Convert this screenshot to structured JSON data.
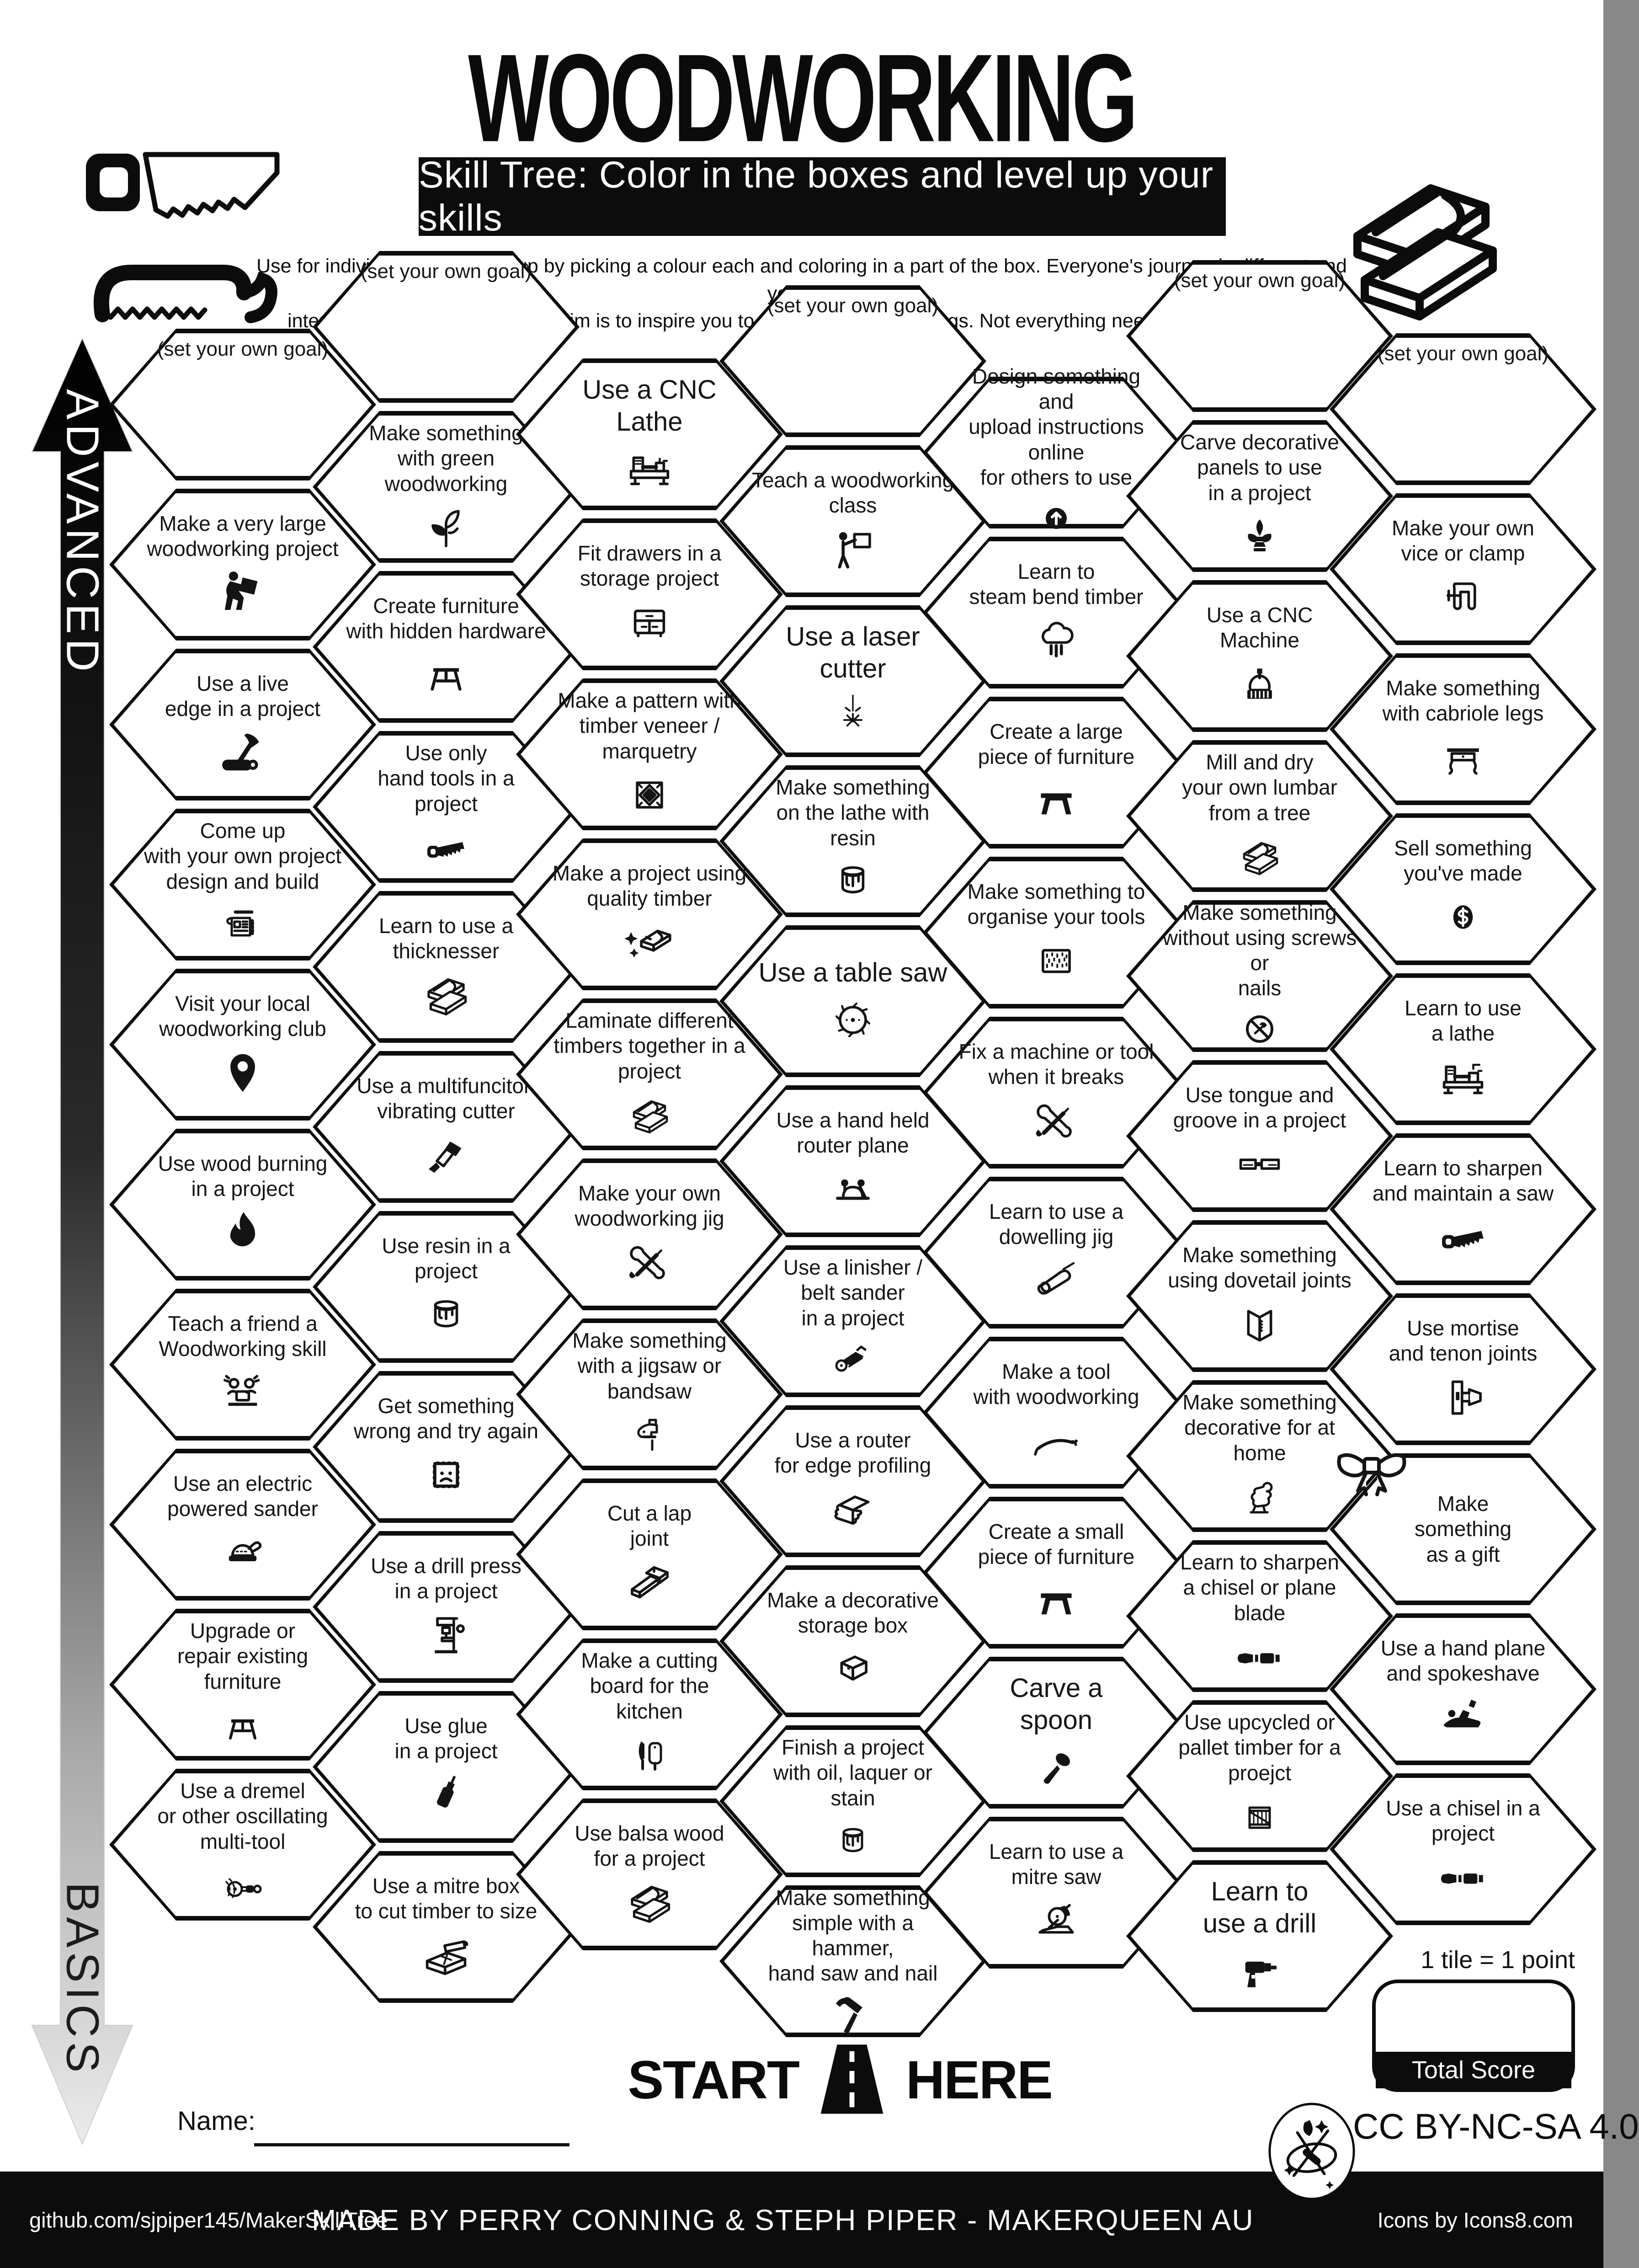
{
  "header": {
    "title": "WOODWORKING",
    "banner": "Skill Tree:  Color in the boxes and level up your skills",
    "description": "Use for individuals or as a group by picking a colour each and coloring in a part of the box.  Everyone's journey is different and you can\ninterpret the goals flexibly.  The aim is to inspire you to learn and try new things. Not everything needs to be completed."
  },
  "axis": {
    "advanced": "ADVANCED",
    "basics": "BASICS"
  },
  "grid": {
    "columns": [
      {
        "hexes": [
          {
            "label": "(set your own goal)",
            "goal": true
          },
          {
            "label": "Make a very large\nwoodworking project",
            "icon": "person-carrying-icon"
          },
          {
            "label": "Use a live\nedge in a project",
            "icon": "axe-log-icon"
          },
          {
            "label": "Come up\nwith your own project\ndesign and build",
            "icon": "blueprint-icon"
          },
          {
            "label": "Visit your local\nwoodworking club",
            "icon": "map-pin-icon"
          },
          {
            "label": "Use wood burning\nin a project",
            "icon": "flame-icon"
          },
          {
            "label": "Teach a friend a\nWoodworking skill",
            "icon": "people-laptop-icon"
          },
          {
            "label": "Use an electric\npowered sander",
            "icon": "orbital-sander-icon"
          },
          {
            "label": "Upgrade or\nrepair existing\nfurniture",
            "icon": "stool-icon"
          },
          {
            "label": "Use a dremel\nor other oscillating\nmulti-tool",
            "icon": "rotary-tool-icon"
          }
        ]
      },
      {
        "hexes": [
          {
            "label": "(set your own goal)",
            "goal": true
          },
          {
            "label": "Make something\nwith green woodworking",
            "icon": "sprout-icon"
          },
          {
            "label": "Create furniture\nwith hidden hardware",
            "icon": "stool-icon"
          },
          {
            "label": "Use only\nhand tools in a\nproject",
            "icon": "hand-saw-icon"
          },
          {
            "label": "Learn to use a\nthicknesser",
            "icon": "planks-icon"
          },
          {
            "label": "Use a multifunciton\nvibrating cutter",
            "icon": "oscillating-cutter-icon"
          },
          {
            "label": "Use resin in a\nproject",
            "icon": "paint-can-icon"
          },
          {
            "label": "Get something\nwrong and try again",
            "icon": "sad-frame-icon"
          },
          {
            "label": "Use a drill press\nin a project",
            "icon": "drill-press-icon"
          },
          {
            "label": "Use glue\nin a project",
            "icon": "glue-bottle-icon"
          },
          {
            "label": "Use a mitre box\nto cut timber to size",
            "icon": "mitre-box-icon"
          }
        ]
      },
      {
        "hexes": [
          {
            "label": "Use a CNC Lathe",
            "icon": "cnc-lathe-icon",
            "lg": true
          },
          {
            "label": "Fit drawers in a\nstorage project",
            "icon": "cabinet-icon"
          },
          {
            "label": "Make a pattern with\ntimber veneer / marquetry",
            "icon": "marquetry-icon"
          },
          {
            "label": "Make a project using\nquality timber",
            "icon": "sparkle-planks-icon"
          },
          {
            "label": "Laminate different\ntimbers together in a\nproject",
            "icon": "planks-icon"
          },
          {
            "label": "Make your own\nwoodworking jig",
            "icon": "crossed-tools-icon"
          },
          {
            "label": "Make something\nwith a jigsaw or\nbandsaw",
            "icon": "jigsaw-icon"
          },
          {
            "label": "Cut a lap\njoint",
            "icon": "lap-joint-icon"
          },
          {
            "label": "Make a cutting\nboard for the\nkitchen",
            "icon": "cutting-board-icon"
          },
          {
            "label": "Use balsa wood\nfor a project",
            "icon": "planks-icon"
          }
        ]
      },
      {
        "hexes": [
          {
            "label": "(set your own goal)",
            "goal": true
          },
          {
            "label": "Teach a woodworking\nclass",
            "icon": "teacher-icon"
          },
          {
            "label": "Use a laser\ncutter",
            "icon": "laser-icon",
            "lg": true
          },
          {
            "label": "Make something\non the lathe with resin",
            "icon": "drip-can-icon"
          },
          {
            "label": "Use a table saw",
            "icon": "saw-blade-icon",
            "lg": true
          },
          {
            "label": "Use a hand held\nrouter plane",
            "icon": "router-plane-icon"
          },
          {
            "label": "Use a linisher /\nbelt sander\nin a project",
            "icon": "belt-sander-icon"
          },
          {
            "label": "Use a router\nfor edge profiling",
            "icon": "edge-profile-icon"
          },
          {
            "label": "Make a decorative\nstorage box",
            "icon": "storage-box-icon"
          },
          {
            "label": "Finish a project\nwith oil,  laquer or\nstain",
            "icon": "drip-can-icon"
          },
          {
            "label": "Make something\nsimple with a hammer,\nhand saw and nail",
            "icon": "hammer-icon"
          }
        ]
      },
      {
        "hexes": [
          {
            "label": "Design something and\nupload instructions online\nfor others to use",
            "icon": "upload-icon"
          },
          {
            "label": "Learn to\nsteam bend timber",
            "icon": "steam-icon"
          },
          {
            "label": "Create a large\npiece of furniture",
            "icon": "table-icon"
          },
          {
            "label": "Make something to\norganise your tools",
            "icon": "pegboard-icon"
          },
          {
            "label": "Fix a machine or tool\nwhen it breaks",
            "icon": "crossed-tools-icon"
          },
          {
            "label": "Learn to use a\ndowelling jig",
            "icon": "dowel-icon"
          },
          {
            "label": "Make a tool\nwith woodworking",
            "icon": "drawknife-icon"
          },
          {
            "label": "Create a small\npiece of furniture",
            "icon": "table-icon"
          },
          {
            "label": "Carve a\nspoon",
            "icon": "spoon-icon",
            "lg": true
          },
          {
            "label": "Learn to use a\nmitre saw",
            "icon": "mitre-saw-icon"
          }
        ]
      },
      {
        "hexes": [
          {
            "label": "(set your own goal)",
            "goal": true
          },
          {
            "label": "Carve decorative\npanels to use\nin a project",
            "icon": "fleur-icon"
          },
          {
            "label": "Use a CNC\nMachine",
            "icon": "cnc-machine-icon"
          },
          {
            "label": "Mill and dry\nyour own lumbar\nfrom a tree",
            "icon": "planks-icon"
          },
          {
            "label": "Make something\nwithout using screws or\nnails",
            "icon": "no-hammer-icon"
          },
          {
            "label": "Use tongue and\ngroove in a project",
            "icon": "tongue-groove-icon"
          },
          {
            "label": "Make something\nusing dovetail joints",
            "icon": "dovetail-icon"
          },
          {
            "label": "Make something\ndecorative for at\nhome",
            "icon": "figurine-icon"
          },
          {
            "label": "Learn to sharpen\na chisel or plane blade",
            "icon": "chisel-icon"
          },
          {
            "label": "Use upcycled or\npallet timber for a\nproejct",
            "icon": "crate-icon"
          },
          {
            "label": "Learn to\nuse a drill",
            "icon": "drill-icon",
            "lg": true
          }
        ]
      },
      {
        "hexes": [
          {
            "label": "(set your own goal)",
            "goal": true
          },
          {
            "label": "Make your own\nvice or clamp",
            "icon": "clamp-icon"
          },
          {
            "label": "Make something\nwith cabriole legs",
            "icon": "cabriole-table-icon"
          },
          {
            "label": "Sell something\nyou've made",
            "icon": "dollar-icon"
          },
          {
            "label": "Learn to use\na lathe",
            "icon": "lathe-icon"
          },
          {
            "label": "Learn to sharpen\nand maintain a saw",
            "icon": "hand-saw-icon"
          },
          {
            "label": "Use mortise\nand tenon joints",
            "icon": "mortise-tenon-icon"
          },
          {
            "label": "Make\nsomething\nas a gift",
            "icon": "bow-icon",
            "icon_pos": "top-left"
          },
          {
            "label": "Use a hand plane\nand spokeshave",
            "icon": "hand-plane-icon"
          },
          {
            "label": "Use a chisel in a\nproject",
            "icon": "chisel-icon"
          }
        ]
      }
    ]
  },
  "footer": {
    "start": "START",
    "here": "HERE",
    "name_label": "Name:",
    "tile_note": "1 tile = 1 point",
    "total_score": "Total Score",
    "license": "CC BY-NC-SA 4.0",
    "github": "github.com/sjpiper145/MakerSkillTree",
    "credit": "MADE BY PERRY CONNING & STEPH PIPER  -  MAKERQUEEN AU",
    "icons_credit": "Icons by Icons8.com"
  },
  "colors": {
    "ink": "#0c0c0c",
    "paper": "#ffffff",
    "fade_end": "#ebebeb"
  }
}
